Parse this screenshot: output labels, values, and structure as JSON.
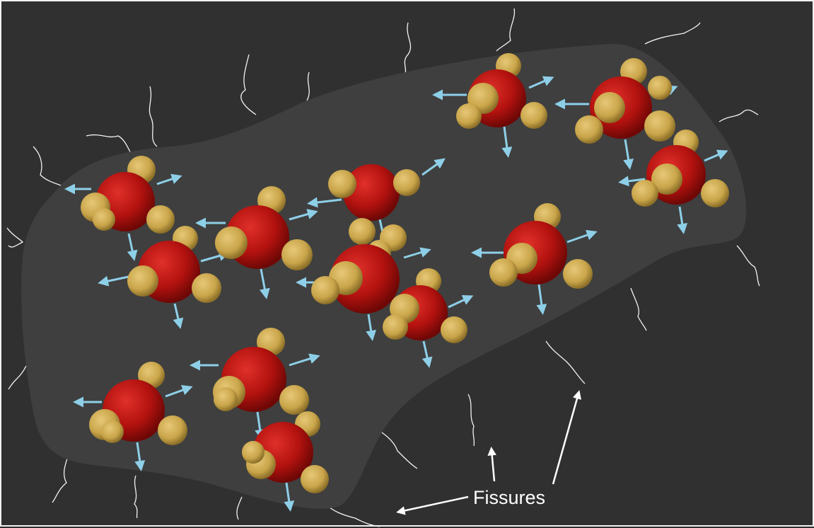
{
  "annotation": {
    "label": "Fissures"
  },
  "colors": {
    "background": "#303030",
    "rock": "#3d3d3d",
    "oxygen": "#b3120f",
    "hydrogen": "#c9a54a",
    "expansion_arrow": "#8ecfe8",
    "fissure": "#f2f2f2",
    "label": "#ffffff"
  },
  "icons": {
    "molecule": "water-molecule-icon",
    "expansion_arrow": "expansion-arrow-icon",
    "pointer": "pointer-arrow-icon"
  }
}
